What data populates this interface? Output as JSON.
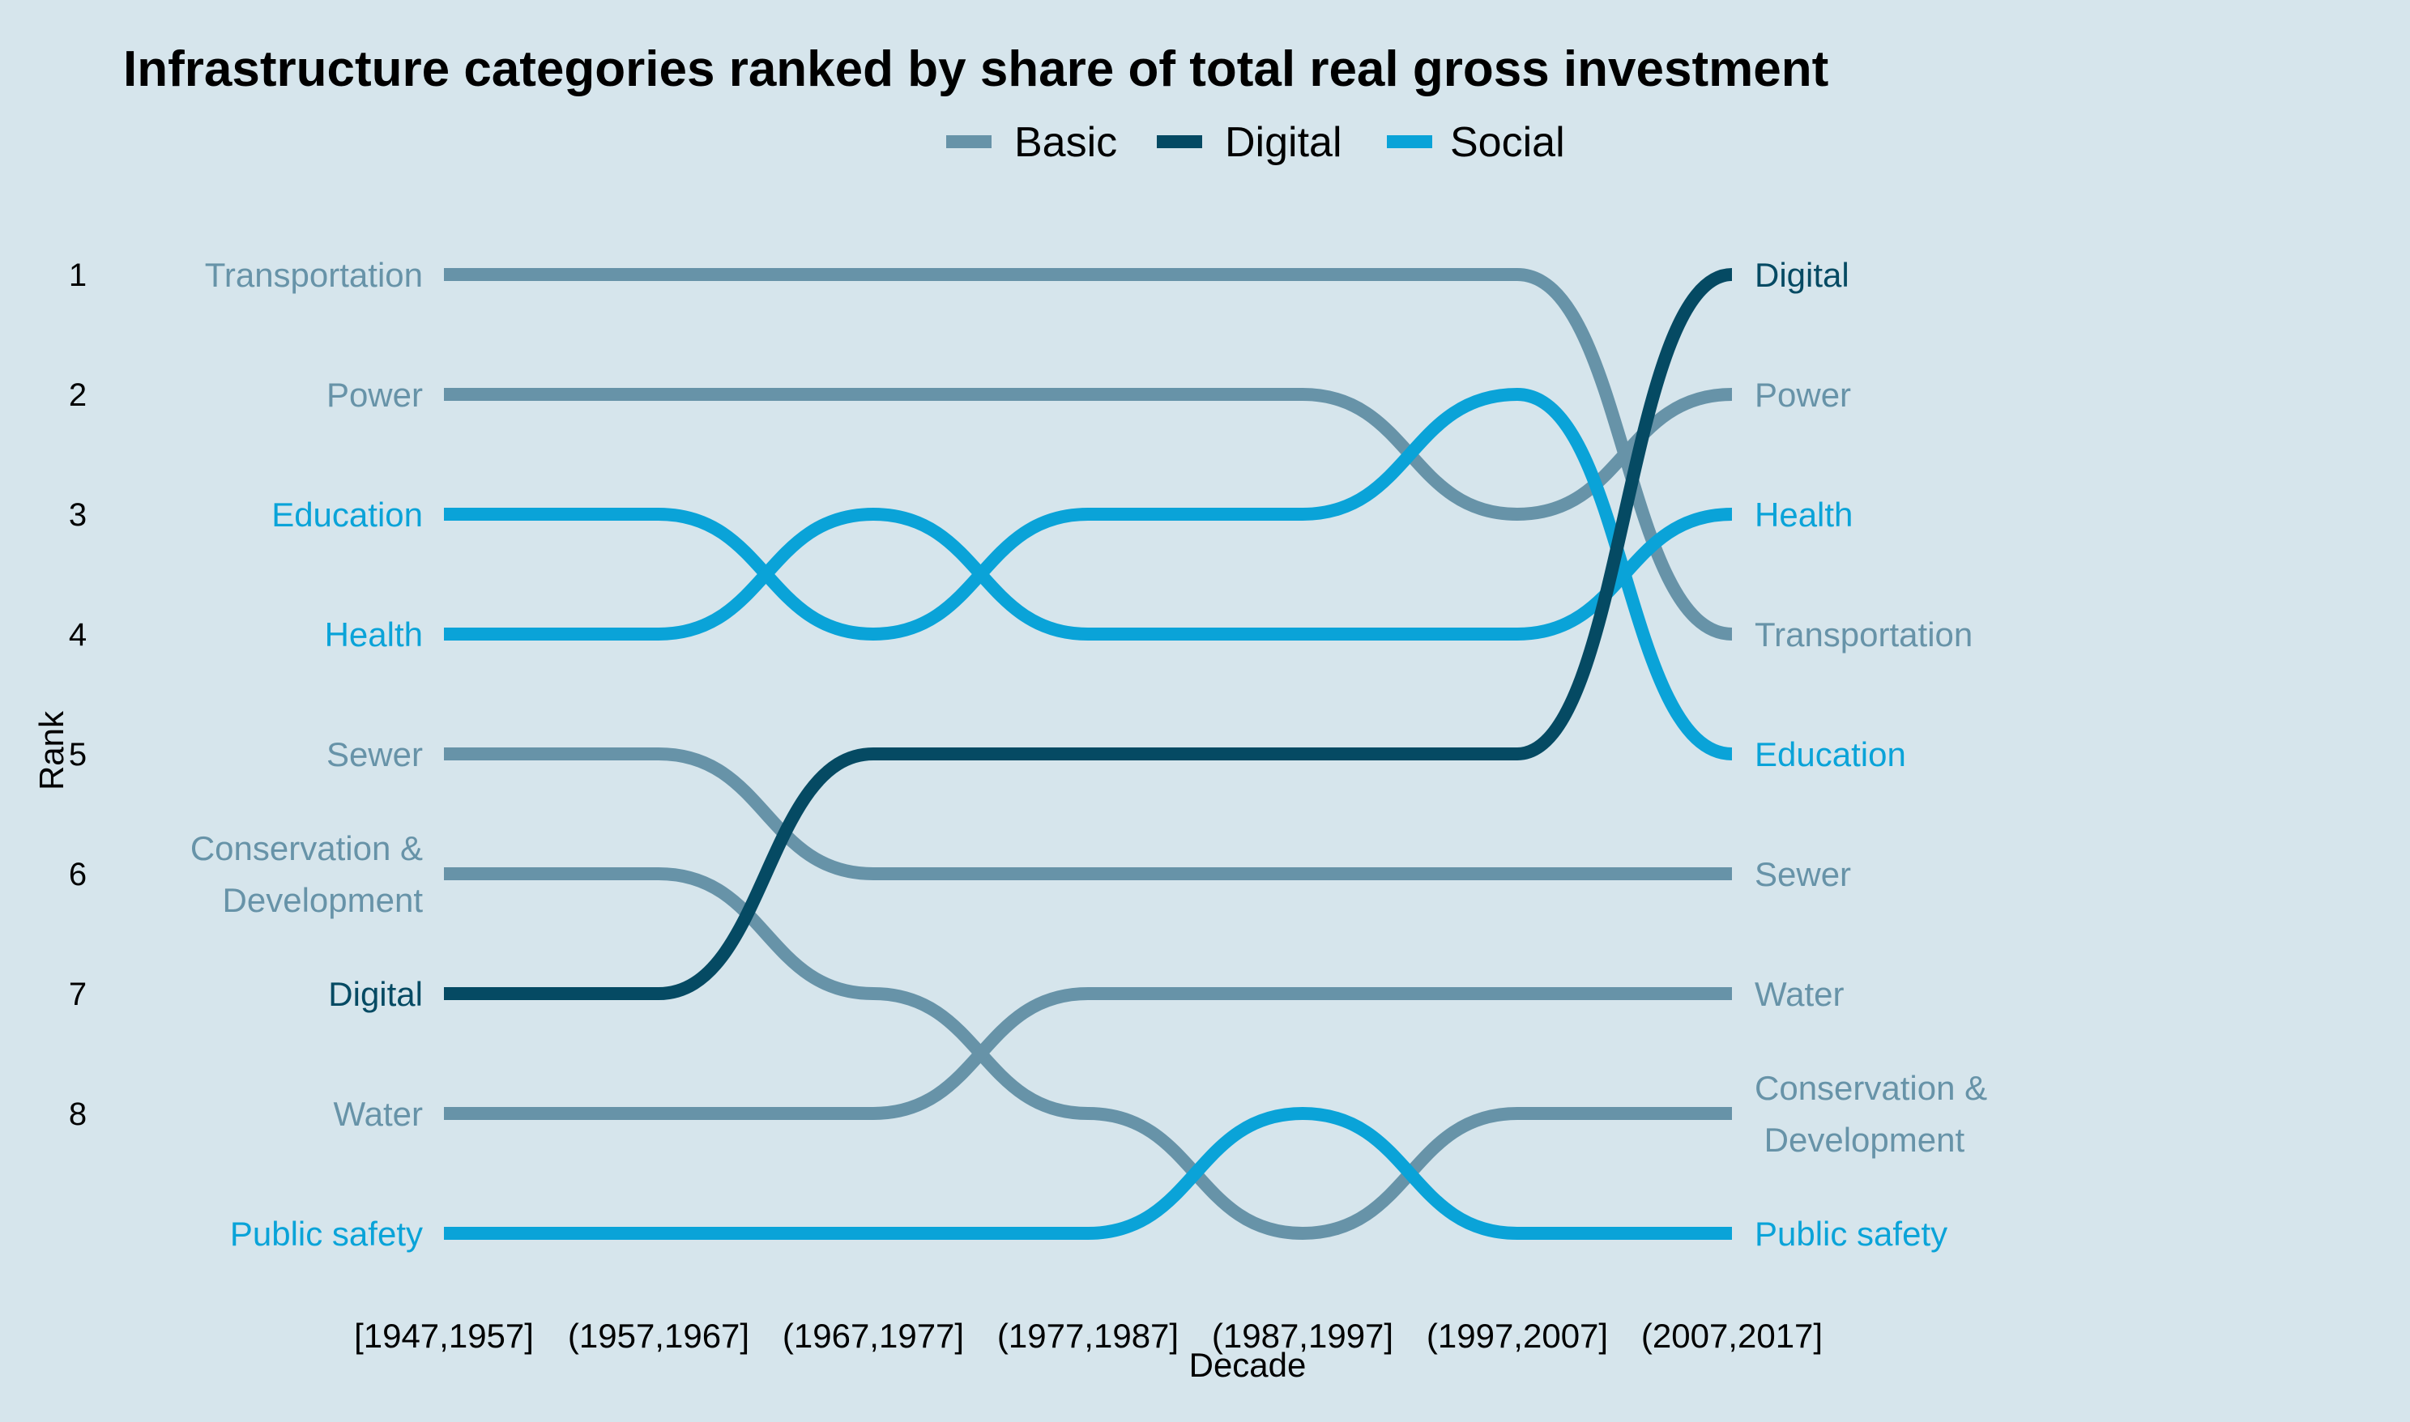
{
  "chart_data": {
    "type": "line",
    "subtype": "bump",
    "title": "Infrastructure categories ranked by share of total real gross investment",
    "xlabel": "Decade",
    "ylabel": "Rank",
    "legend_position": "top",
    "categories": [
      "[1947,1957]",
      "(1957,1967]",
      "(1967,1977]",
      "(1977,1987]",
      "(1987,1997]",
      "(1997,2007]",
      "(2007,2017]"
    ],
    "rank_labels": [
      "1",
      "2",
      "3",
      "4",
      "5",
      "6",
      "7",
      "8"
    ],
    "groups": [
      {
        "name": "Basic",
        "color": "#6793a8"
      },
      {
        "name": "Digital",
        "color": "#054a63"
      },
      {
        "name": "Social",
        "color": "#0aa3d8"
      }
    ],
    "series": [
      {
        "name": "Transportation",
        "group": "Basic",
        "start_label": "Transportation",
        "end_label": "Transportation",
        "ranks": [
          1,
          1,
          1,
          1,
          1,
          1,
          4
        ]
      },
      {
        "name": "Power",
        "group": "Basic",
        "start_label": "Power",
        "end_label": "Power",
        "ranks": [
          2,
          2,
          2,
          2,
          2,
          3,
          2
        ]
      },
      {
        "name": "Education",
        "group": "Social",
        "start_label": "Education",
        "end_label": "Education",
        "ranks": [
          3,
          3,
          4,
          3,
          3,
          2,
          5
        ]
      },
      {
        "name": "Health",
        "group": "Social",
        "start_label": "Health",
        "end_label": "Health",
        "ranks": [
          4,
          4,
          3,
          4,
          4,
          4,
          3
        ]
      },
      {
        "name": "Sewer",
        "group": "Basic",
        "start_label": "Sewer",
        "end_label": "Sewer",
        "ranks": [
          5,
          5,
          6,
          6,
          6,
          6,
          6
        ]
      },
      {
        "name": "Conservation & Development",
        "group": "Basic",
        "start_label": "Conservation &\nDevelopment",
        "end_label": "Conservation &\n Development",
        "ranks": [
          6,
          6,
          7,
          8,
          9,
          8,
          8
        ]
      },
      {
        "name": "Digital",
        "group": "Digital",
        "start_label": "Digital",
        "end_label": "Digital",
        "ranks": [
          7,
          7,
          5,
          5,
          5,
          5,
          1
        ]
      },
      {
        "name": "Water",
        "group": "Basic",
        "start_label": "Water",
        "end_label": "Water",
        "ranks": [
          8,
          8,
          8,
          7,
          7,
          7,
          7
        ]
      },
      {
        "name": "Public safety",
        "group": "Social",
        "start_label": "Public safety",
        "end_label": "Public safety",
        "ranks": [
          9,
          9,
          9,
          9,
          8,
          9,
          9
        ]
      }
    ]
  }
}
